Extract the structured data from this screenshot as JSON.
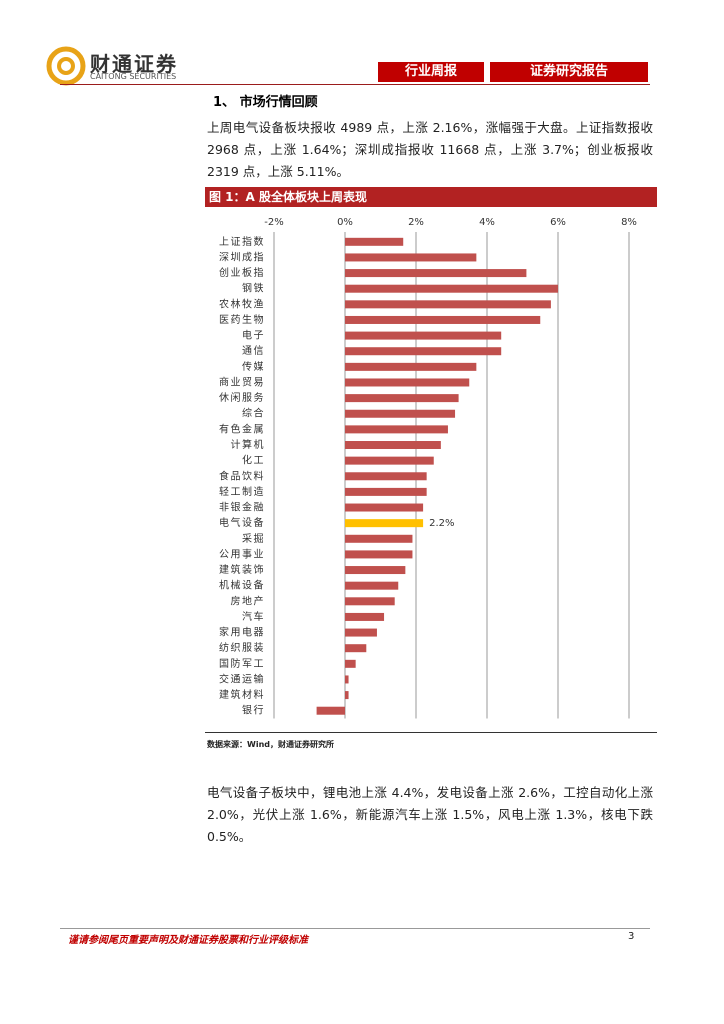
{
  "header": {
    "logo_cn": "财通证券",
    "logo_en": "CAITONG SECURITIES",
    "tag1": "行业周报",
    "tag2": "证券研究报告"
  },
  "section_title": "1、 市场行情回顾",
  "paragraph1": "上周电气设备板块报收 4989 点，上涨 2.16%，涨幅强于大盘。上证指数报收 2968 点，上涨 1.64%；深圳成指报收 11668 点，上涨 3.7%；创业板报收 2319 点，上涨 5.11%。",
  "figure_title": "图 1：A 股全体板块上周表现",
  "chart_data": {
    "type": "hbar",
    "categories": [
      "上证指数",
      "深圳成指",
      "创业板指",
      "钢铁",
      "农林牧渔",
      "医药生物",
      "电子",
      "通信",
      "传媒",
      "商业贸易",
      "休闲服务",
      "综合",
      "有色金属",
      "计算机",
      "化工",
      "食品饮料",
      "轻工制造",
      "非银金融",
      "电气设备",
      "采掘",
      "公用事业",
      "建筑装饰",
      "机械设备",
      "房地产",
      "汽车",
      "家用电器",
      "纺织服装",
      "国防军工",
      "交通运输",
      "建筑材料",
      "银行"
    ],
    "values": [
      1.64,
      3.7,
      5.11,
      6.0,
      5.8,
      5.5,
      4.4,
      4.4,
      3.7,
      3.5,
      3.2,
      3.1,
      2.9,
      2.7,
      2.5,
      2.3,
      2.3,
      2.2,
      2.2,
      1.9,
      1.9,
      1.7,
      1.5,
      1.4,
      1.1,
      0.9,
      0.6,
      0.3,
      0.1,
      0.1,
      -0.8
    ],
    "value_labels": [
      null,
      null,
      null,
      null,
      null,
      null,
      null,
      null,
      null,
      null,
      null,
      null,
      null,
      null,
      null,
      null,
      null,
      null,
      "2.2%",
      null,
      null,
      null,
      null,
      null,
      null,
      null,
      null,
      null,
      null,
      null,
      null
    ],
    "colors": [
      "#c0504d",
      "#c0504d",
      "#c0504d",
      "#c0504d",
      "#c0504d",
      "#c0504d",
      "#c0504d",
      "#c0504d",
      "#c0504d",
      "#c0504d",
      "#c0504d",
      "#c0504d",
      "#c0504d",
      "#c0504d",
      "#c0504d",
      "#c0504d",
      "#c0504d",
      "#c0504d",
      "#ffc000",
      "#c0504d",
      "#c0504d",
      "#c0504d",
      "#c0504d",
      "#c0504d",
      "#c0504d",
      "#c0504d",
      "#c0504d",
      "#c0504d",
      "#c0504d",
      "#c0504d",
      "#c0504d"
    ],
    "xlim": [
      -2,
      8
    ],
    "xticks": [
      {
        "value": -2,
        "label": "-2%"
      },
      {
        "value": 0,
        "label": "0%"
      },
      {
        "value": 2,
        "label": "2%"
      },
      {
        "value": 4,
        "label": "4%"
      },
      {
        "value": 6,
        "label": "6%"
      },
      {
        "value": 8,
        "label": "8%"
      }
    ],
    "grid": true
  },
  "source": "数据来源：Wind，财通证券研究所",
  "paragraph2": "电气设备子板块中，锂电池上涨 4.4%，发电设备上涨 2.6%，工控自动化上涨 2.0%，光伏上涨 1.6%，新能源汽车上涨 1.5%，风电上涨 1.3%，核电下跌 0.5%。",
  "footer": {
    "disclaimer": "谨请参阅尾页重要声明及财通证券股票和行业评级标准",
    "page": "3"
  }
}
